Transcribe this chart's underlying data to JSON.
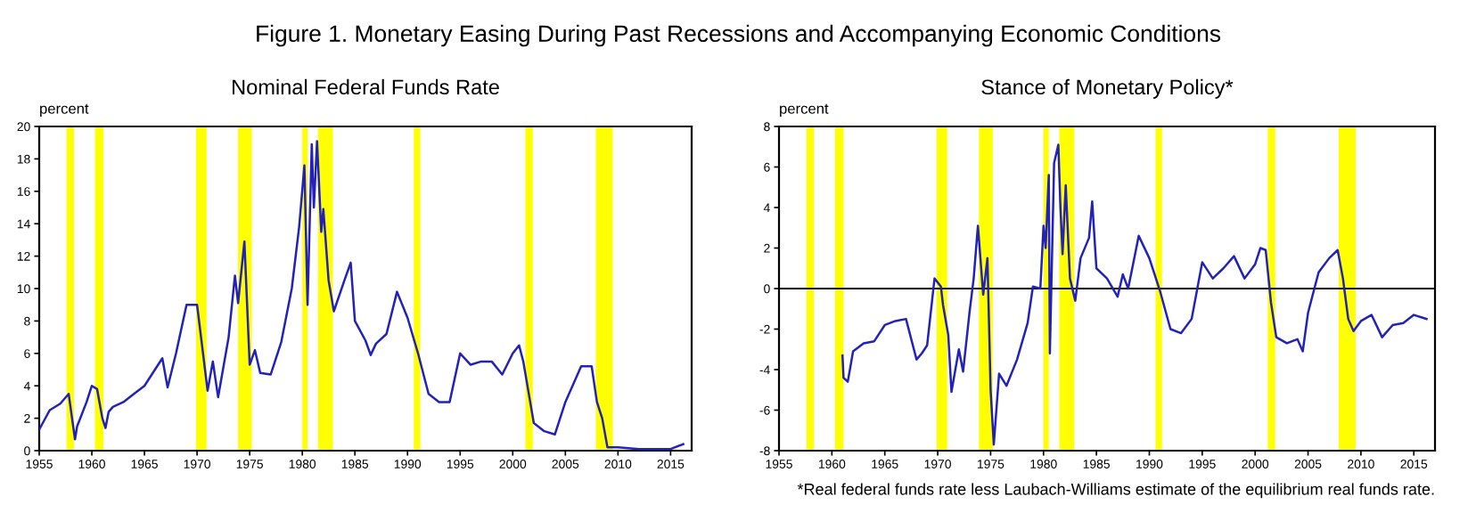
{
  "chart_data": [
    {
      "type": "line",
      "title": "Nominal Federal Funds Rate",
      "ylabel": "percent",
      "annotations": [
        "Figure 1. Monetary Easing During Past Recessions and Accompanying Economic Conditions"
      ],
      "xlim": [
        1955,
        2017
      ],
      "xticks": [
        1955,
        1960,
        1965,
        1970,
        1975,
        1980,
        1985,
        1990,
        1995,
        2000,
        2005,
        2010,
        2015
      ],
      "ylim": [
        0,
        20
      ],
      "yticks": [
        0,
        2,
        4,
        6,
        8,
        10,
        12,
        14,
        16,
        18,
        20
      ],
      "grid": false,
      "legend": false,
      "bands": [
        {
          "axis": "x",
          "from": 1957.6,
          "to": 1958.3,
          "color": "#ffff00"
        },
        {
          "axis": "x",
          "from": 1960.3,
          "to": 1961.1,
          "color": "#ffff00"
        },
        {
          "axis": "x",
          "from": 1969.9,
          "to": 1970.9,
          "color": "#ffff00"
        },
        {
          "axis": "x",
          "from": 1973.9,
          "to": 1975.2,
          "color": "#ffff00"
        },
        {
          "axis": "x",
          "from": 1980.0,
          "to": 1980.5,
          "color": "#ffff00"
        },
        {
          "axis": "x",
          "from": 1981.5,
          "to": 1982.9,
          "color": "#ffff00"
        },
        {
          "axis": "x",
          "from": 1990.6,
          "to": 1991.2,
          "color": "#ffff00"
        },
        {
          "axis": "x",
          "from": 2001.2,
          "to": 2001.9,
          "color": "#ffff00"
        },
        {
          "axis": "x",
          "from": 2007.9,
          "to": 2009.5,
          "color": "#ffff00"
        }
      ],
      "series": [
        {
          "color": "#2222bb",
          "x": [
            1955,
            1956,
            1957,
            1957.8,
            1958.4,
            1958.6,
            1959.5,
            1960,
            1960.5,
            1961,
            1961.3,
            1961.6,
            1962,
            1963,
            1964,
            1965,
            1966,
            1966.7,
            1967.2,
            1968,
            1969,
            1970,
            1971,
            1971.5,
            1972,
            1973,
            1973.6,
            1973.9,
            1974.5,
            1975,
            1975.5,
            1976,
            1977,
            1978,
            1979,
            1979.7,
            1980.2,
            1980.5,
            1980.9,
            1981.1,
            1981.4,
            1981.8,
            1982.0,
            1982.5,
            1983,
            1984,
            1984.6,
            1985,
            1986,
            1986.5,
            1987,
            1988,
            1989,
            1990,
            1991,
            1992,
            1993,
            1994,
            1995,
            1996,
            1997,
            1998,
            1999,
            2000,
            2000.6,
            2001,
            2002,
            2003,
            2004,
            2005,
            2006.5,
            2007.5,
            2008,
            2008.5,
            2009,
            2010,
            2012,
            2015,
            2016.2
          ],
          "values": [
            1.3,
            2.5,
            2.9,
            3.5,
            0.7,
            1.5,
            3.0,
            4.0,
            3.8,
            2.0,
            1.4,
            2.4,
            2.7,
            3.0,
            3.5,
            4.0,
            5.0,
            5.7,
            3.9,
            6.0,
            9.0,
            9.0,
            3.7,
            5.5,
            3.3,
            7.0,
            10.8,
            9.1,
            12.9,
            5.3,
            6.2,
            4.8,
            4.7,
            6.7,
            10.0,
            13.8,
            17.6,
            9.0,
            18.9,
            15.0,
            19.1,
            13.5,
            14.9,
            10.5,
            8.6,
            10.5,
            11.6,
            8.0,
            6.8,
            5.9,
            6.6,
            7.2,
            9.8,
            8.2,
            6.0,
            3.5,
            3.0,
            3.0,
            6.0,
            5.3,
            5.5,
            5.5,
            4.7,
            6.0,
            6.5,
            5.5,
            1.7,
            1.2,
            1.0,
            3.0,
            5.2,
            5.2,
            3.0,
            2.0,
            0.2,
            0.2,
            0.1,
            0.1,
            0.4
          ]
        }
      ]
    },
    {
      "type": "line",
      "title": "Stance of Monetary Policy*",
      "ylabel": "percent",
      "annotations": [
        "*Real federal funds rate less Laubach-Williams estimate of the equilibrium real funds rate."
      ],
      "xlim": [
        1955,
        2017
      ],
      "xticks": [
        1955,
        1960,
        1965,
        1970,
        1975,
        1980,
        1985,
        1990,
        1995,
        2000,
        2005,
        2010,
        2015
      ],
      "ylim": [
        -8,
        8
      ],
      "yticks": [
        -8,
        -6,
        -4,
        -2,
        0,
        2,
        4,
        6,
        8
      ],
      "grid": false,
      "legend": false,
      "ref_lines": [
        {
          "axis": "y",
          "value": 0,
          "color": "#000000"
        }
      ],
      "bands": [
        {
          "axis": "x",
          "from": 1957.6,
          "to": 1958.3,
          "color": "#ffff00"
        },
        {
          "axis": "x",
          "from": 1960.3,
          "to": 1961.1,
          "color": "#ffff00"
        },
        {
          "axis": "x",
          "from": 1969.9,
          "to": 1970.9,
          "color": "#ffff00"
        },
        {
          "axis": "x",
          "from": 1973.9,
          "to": 1975.2,
          "color": "#ffff00"
        },
        {
          "axis": "x",
          "from": 1980.0,
          "to": 1980.5,
          "color": "#ffff00"
        },
        {
          "axis": "x",
          "from": 1981.5,
          "to": 1982.9,
          "color": "#ffff00"
        },
        {
          "axis": "x",
          "from": 1990.6,
          "to": 1991.2,
          "color": "#ffff00"
        },
        {
          "axis": "x",
          "from": 2001.2,
          "to": 2001.9,
          "color": "#ffff00"
        },
        {
          "axis": "x",
          "from": 2007.9,
          "to": 2009.5,
          "color": "#ffff00"
        }
      ],
      "series": [
        {
          "color": "#2222bb",
          "x": [
            1961,
            1961.1,
            1961.5,
            1962,
            1963,
            1964,
            1965,
            1966,
            1967,
            1968,
            1968.5,
            1969,
            1969.7,
            1970.3,
            1970.5,
            1971,
            1971.3,
            1972,
            1972.4,
            1973,
            1973.4,
            1973.8,
            1974.3,
            1974.7,
            1975,
            1975.3,
            1975.8,
            1976.5,
            1977.5,
            1978.5,
            1979,
            1979.7,
            1980.0,
            1980.2,
            1980.5,
            1980.6,
            1981.0,
            1981.4,
            1981.6,
            1981.8,
            1982.1,
            1982.5,
            1983,
            1983.5,
            1984.3,
            1984.6,
            1985,
            1986,
            1987,
            1987.5,
            1988,
            1989,
            1990,
            1991,
            1992,
            1993,
            1994,
            1995,
            1996,
            1997,
            1998,
            1999,
            2000,
            2000.5,
            2001,
            2001.5,
            2002,
            2003,
            2004,
            2004.5,
            2005,
            2006,
            2007,
            2007.8,
            2008.3,
            2008.8,
            2009.3,
            2010,
            2011,
            2012,
            2013,
            2014,
            2015,
            2016.2
          ],
          "values": [
            -3.3,
            -4.4,
            -4.6,
            -3.1,
            -2.7,
            -2.6,
            -1.8,
            -1.6,
            -1.5,
            -3.5,
            -3.2,
            -2.8,
            0.5,
            0.1,
            -0.8,
            -2.3,
            -5.1,
            -3.0,
            -4.1,
            -1.2,
            0.5,
            3.1,
            -0.3,
            1.5,
            -5.0,
            -7.7,
            -4.2,
            -4.8,
            -3.5,
            -1.7,
            0.1,
            0.0,
            3.1,
            2.0,
            5.6,
            -3.2,
            6.2,
            7.1,
            4.0,
            1.7,
            5.1,
            0.5,
            -0.6,
            1.5,
            2.5,
            4.3,
            1.0,
            0.5,
            -0.4,
            0.7,
            0.0,
            2.6,
            1.5,
            -0.1,
            -2.0,
            -2.2,
            -1.5,
            1.3,
            0.5,
            1.0,
            1.6,
            0.5,
            1.2,
            2.0,
            1.9,
            -0.7,
            -2.4,
            -2.7,
            -2.5,
            -3.1,
            -1.2,
            0.8,
            1.5,
            1.9,
            0.5,
            -1.5,
            -2.1,
            -1.6,
            -1.3,
            -2.4,
            -1.8,
            -1.7,
            -1.3,
            -1.5
          ]
        }
      ]
    }
  ]
}
